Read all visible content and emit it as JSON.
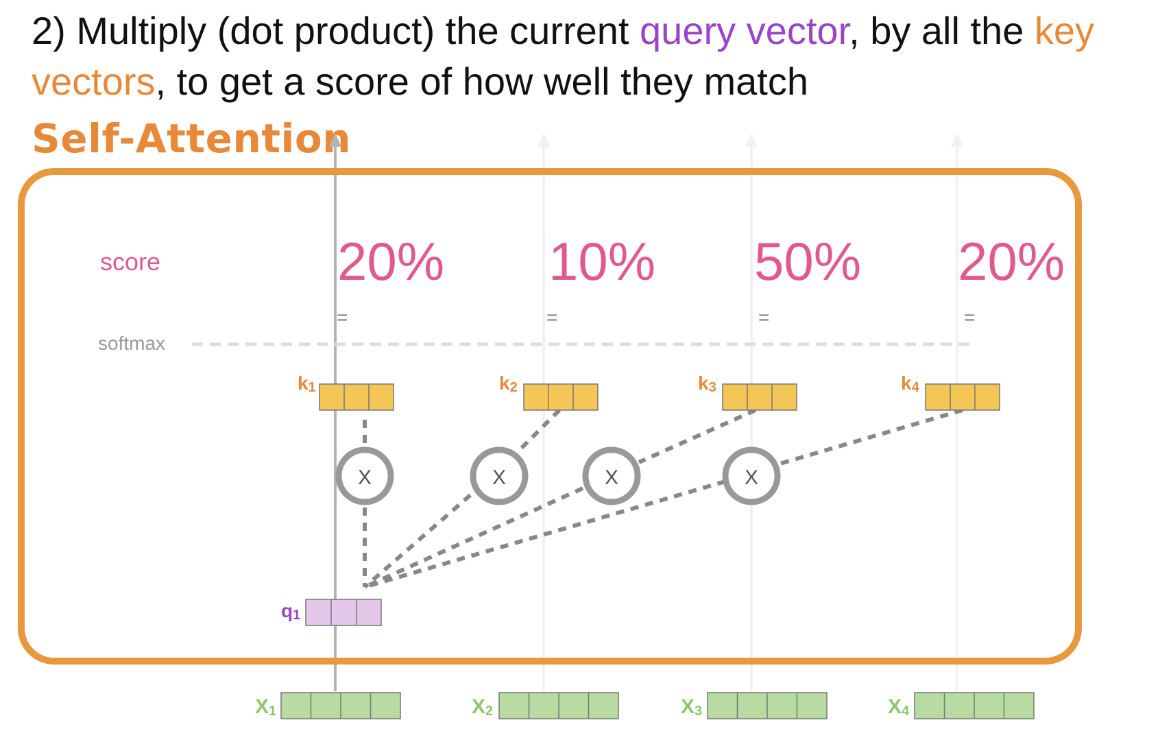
{
  "heading": {
    "prefix": "2) Multiply (dot product) the current ",
    "query_phrase": "query vector",
    "middle": ", by all the ",
    "key_phrase_line1": "key",
    "key_phrase_line2": "vectors",
    "suffix": ", to get a score of how well they match"
  },
  "section_title": "Self-Attention",
  "score_label": "score",
  "softmax_label": "softmax",
  "equals_sign": "=",
  "scores": [
    "20%",
    "10%",
    "50%",
    "20%"
  ],
  "key_labels": [
    "k",
    "k",
    "k",
    "k"
  ],
  "key_subscripts": [
    "1",
    "2",
    "3",
    "4"
  ],
  "query_label": "q",
  "query_subscript": "1",
  "input_labels": [
    "X",
    "X",
    "X",
    "X"
  ],
  "input_subscripts": [
    "1",
    "2",
    "3",
    "4"
  ],
  "multiply_symbol": "X",
  "colors": {
    "orange_accent": "#e8993e",
    "query_purple": "#9b44c8",
    "key_yellow": "#f3c655",
    "query_fill": "#e3c8ea",
    "input_green": "#b7dba1",
    "input_label_green": "#8dc86a",
    "score_pink": "#e05a8f",
    "gray": "#8c8c8c"
  }
}
